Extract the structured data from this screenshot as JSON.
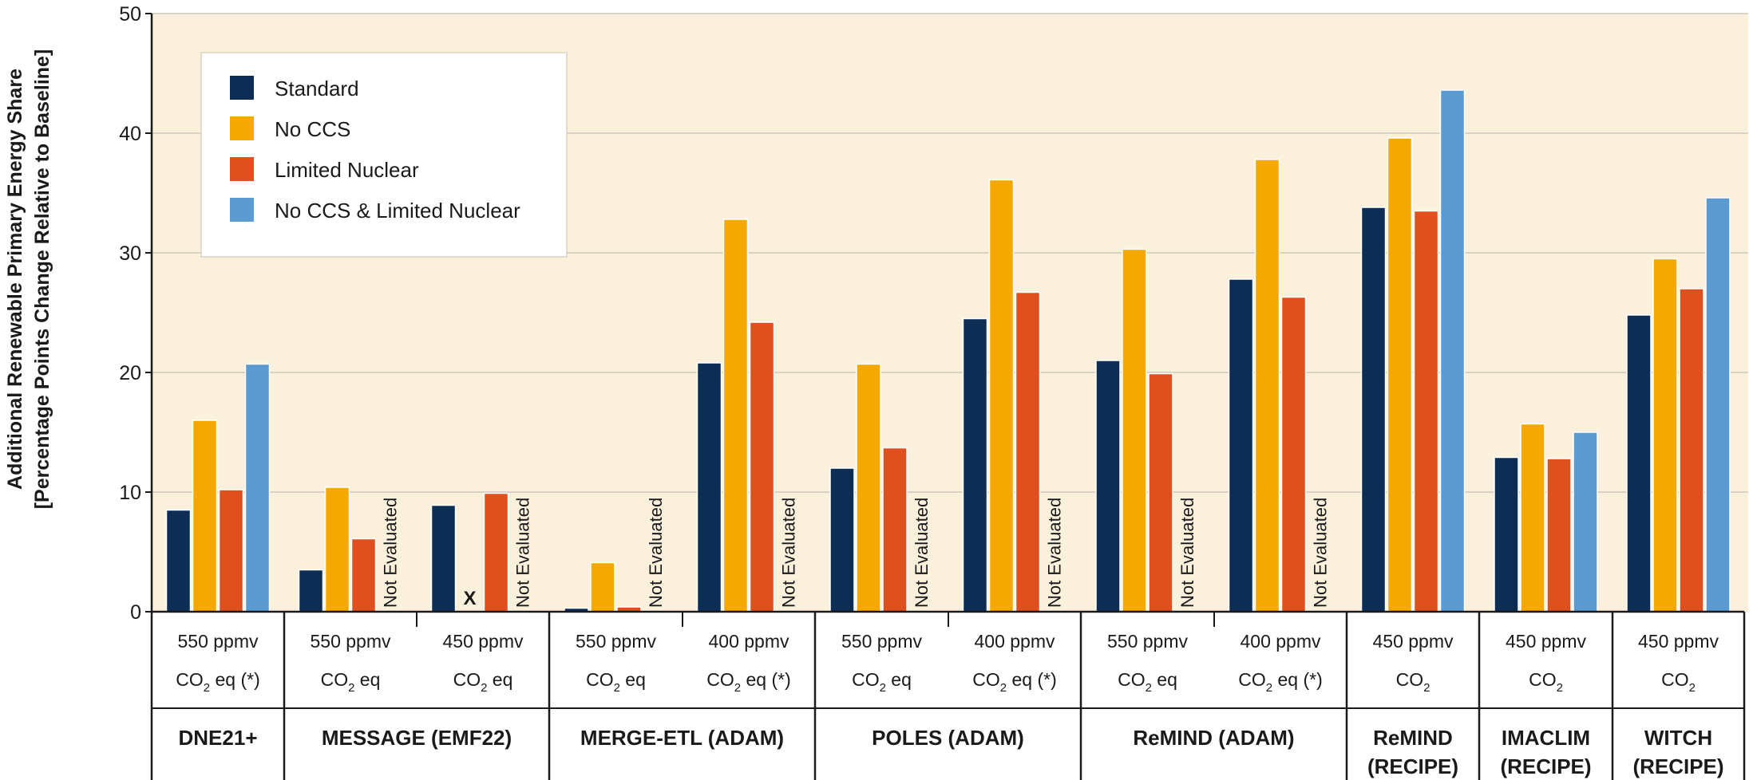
{
  "chart_data": {
    "type": "bar",
    "ylabel_lines": [
      "Additional Renewable Primary Energy Share",
      "[Percentage Points Change Relative to Baseline]"
    ],
    "ylim": [
      0,
      50
    ],
    "yticks": [
      0,
      10,
      20,
      30,
      40,
      50
    ],
    "grid": true,
    "legend_position": "top-left",
    "series": [
      {
        "name": "Standard",
        "color": "#0d2d55"
      },
      {
        "name": "No CCS",
        "color": "#f5a800"
      },
      {
        "name": "Limited Nuclear",
        "color": "#e0501e"
      },
      {
        "name": "No CCS & Limited Nuclear",
        "color": "#5b9bd2"
      }
    ],
    "not_evaluated_label": "Not Evaluated",
    "excluded_mark": "X",
    "groups": [
      {
        "model": [
          "DNE21+"
        ],
        "scenarios": [
          {
            "line1": "550 ppmv",
            "line2": [
              "CO",
              "2",
              " eq (*)"
            ],
            "values": [
              8.5,
              16,
              10.2,
              20.7
            ]
          }
        ]
      },
      {
        "model": [
          "MESSAGE (EMF22)"
        ],
        "scenarios": [
          {
            "line1": "550 ppmv",
            "line2": [
              "CO",
              "2",
              " eq"
            ],
            "values": [
              3.5,
              10.4,
              6.1,
              null
            ]
          },
          {
            "line1": "450 ppmv",
            "line2": [
              "CO",
              "2",
              " eq"
            ],
            "values": [
              8.9,
              "X",
              9.9,
              null
            ]
          }
        ]
      },
      {
        "model": [
          "MERGE-ETL (ADAM)"
        ],
        "scenarios": [
          {
            "line1": "550 ppmv",
            "line2": [
              "CO",
              "2",
              " eq"
            ],
            "values": [
              0.3,
              4.1,
              0.4,
              null
            ]
          },
          {
            "line1": "400 ppmv",
            "line2": [
              "CO",
              "2",
              " eq (*)"
            ],
            "values": [
              20.8,
              32.8,
              24.2,
              null
            ]
          }
        ]
      },
      {
        "model": [
          "POLES (ADAM)"
        ],
        "scenarios": [
          {
            "line1": "550 ppmv",
            "line2": [
              "CO",
              "2",
              " eq"
            ],
            "values": [
              12,
              20.7,
              13.7,
              null
            ]
          },
          {
            "line1": "400 ppmv",
            "line2": [
              "CO",
              "2",
              " eq (*)"
            ],
            "values": [
              24.5,
              36.1,
              26.7,
              null
            ]
          }
        ]
      },
      {
        "model": [
          "ReMIND (ADAM)"
        ],
        "scenarios": [
          {
            "line1": "550 ppmv",
            "line2": [
              "CO",
              "2",
              " eq"
            ],
            "values": [
              21,
              30.3,
              19.9,
              null
            ]
          },
          {
            "line1": "400 ppmv",
            "line2": [
              "CO",
              "2",
              " eq (*)"
            ],
            "values": [
              27.8,
              37.8,
              26.3,
              null
            ]
          }
        ]
      },
      {
        "model": [
          "ReMIND",
          "(RECIPE)"
        ],
        "scenarios": [
          {
            "line1": "450 ppmv",
            "line2": [
              "CO",
              "2",
              ""
            ],
            "values": [
              33.8,
              39.6,
              33.5,
              43.6
            ]
          }
        ]
      },
      {
        "model": [
          "IMACLIM",
          "(RECIPE)"
        ],
        "scenarios": [
          {
            "line1": "450 ppmv",
            "line2": [
              "CO",
              "2",
              ""
            ],
            "values": [
              12.9,
              15.7,
              12.8,
              15
            ]
          }
        ]
      },
      {
        "model": [
          "WITCH",
          "(RECIPE)"
        ],
        "scenarios": [
          {
            "line1": "450 ppmv",
            "line2": [
              "CO",
              "2",
              ""
            ],
            "values": [
              24.8,
              29.5,
              27,
              34.6
            ]
          }
        ]
      }
    ]
  }
}
